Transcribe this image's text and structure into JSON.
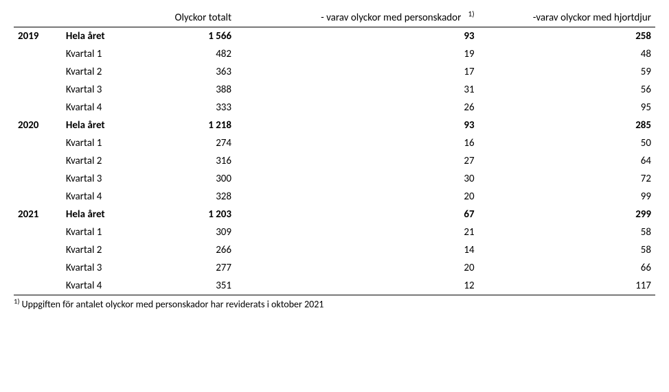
{
  "headers": {
    "col1": "Olyckor totalt",
    "col2_prefix": "- varav olyckor med personskador",
    "col2_sup": "1)",
    "col3": "-varav olyckor med hjortdjur"
  },
  "years": [
    {
      "year": "2019",
      "total_label": "Hela året",
      "total": {
        "c1": "1 566",
        "c2": "93",
        "c3": "258"
      },
      "quarters": [
        {
          "label": "Kvartal 1",
          "c1": "482",
          "c2": "19",
          "c3": "48"
        },
        {
          "label": "Kvartal 2",
          "c1": "363",
          "c2": "17",
          "c3": "59"
        },
        {
          "label": "Kvartal 3",
          "c1": "388",
          "c2": "31",
          "c3": "56"
        },
        {
          "label": "Kvartal 4",
          "c1": "333",
          "c2": "26",
          "c3": "95"
        }
      ]
    },
    {
      "year": "2020",
      "total_label": "Hela året",
      "total": {
        "c1": "1 218",
        "c2": "93",
        "c3": "285"
      },
      "quarters": [
        {
          "label": "Kvartal 1",
          "c1": "274",
          "c2": "16",
          "c3": "50"
        },
        {
          "label": "Kvartal 2",
          "c1": "316",
          "c2": "27",
          "c3": "64"
        },
        {
          "label": "Kvartal 3",
          "c1": "300",
          "c2": "30",
          "c3": "72"
        },
        {
          "label": "Kvartal 4",
          "c1": "328",
          "c2": "20",
          "c3": "99"
        }
      ]
    },
    {
      "year": "2021",
      "total_label": "Hela året",
      "total": {
        "c1": "1 203",
        "c2": "67",
        "c3": "299"
      },
      "quarters": [
        {
          "label": "Kvartal 1",
          "c1": "309",
          "c2": "21",
          "c3": "58"
        },
        {
          "label": "Kvartal 2",
          "c1": "266",
          "c2": "14",
          "c3": "58"
        },
        {
          "label": "Kvartal 3",
          "c1": "277",
          "c2": "20",
          "c3": "66"
        },
        {
          "label": "Kvartal 4",
          "c1": "351",
          "c2": "12",
          "c3": "117"
        }
      ]
    }
  ],
  "footnote": {
    "sup": "1)",
    "text": " Uppgiften för antalet olyckor med personskador har reviderats i oktober 2021"
  }
}
